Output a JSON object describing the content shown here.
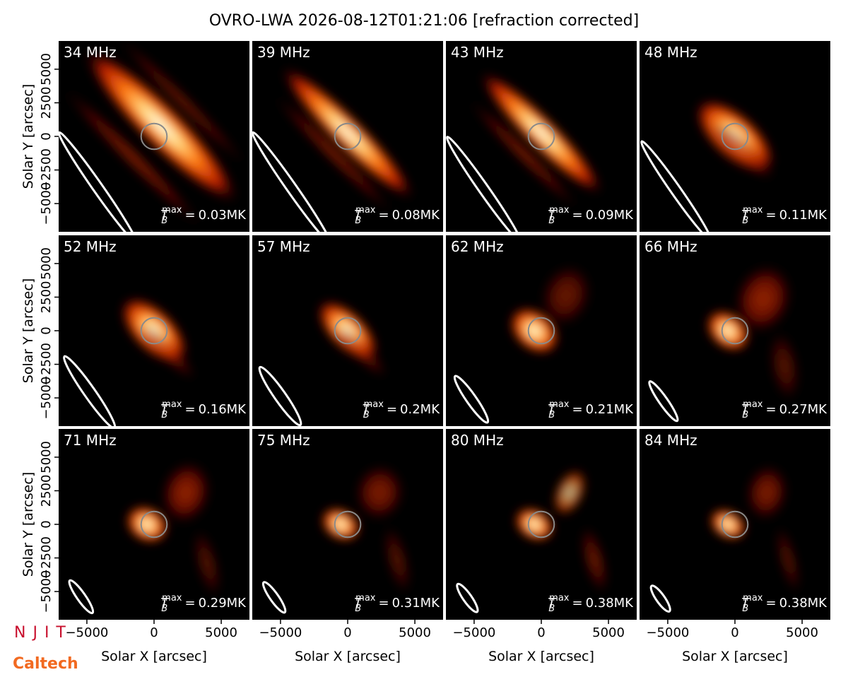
{
  "title": "OVRO-LWA 2026-08-12T01:21:06 [refraction corrected]",
  "xlabel": "Solar X [arcsec]",
  "ylabel": "Solar Y [arcsec]",
  "xlim": [
    -7100,
    7100
  ],
  "ylim": [
    -7100,
    7100
  ],
  "xticks": [
    {
      "value": -5000,
      "label": "−5000"
    },
    0,
    5000
  ],
  "yticks": [
    {
      "value": -5000,
      "label": "−5000"
    },
    {
      "value": -2500,
      "label": "−2500"
    },
    0,
    2500,
    5000
  ],
  "tb_label": {
    "symbol": "T",
    "sub": "B",
    "sup": "max",
    "eq": "="
  },
  "logos": [
    "NJIT",
    "Caltech"
  ],
  "chart_data": [
    {
      "type": "image",
      "title": "34 MHz",
      "values": [
        0.03
      ],
      "value_labels": [
        "0.03MK"
      ]
    },
    {
      "type": "image",
      "title": "39 MHz",
      "values": [
        0.08
      ],
      "value_labels": [
        "0.08MK"
      ]
    },
    {
      "type": "image",
      "title": "43 MHz",
      "values": [
        0.09
      ],
      "value_labels": [
        "0.09MK"
      ]
    },
    {
      "type": "image",
      "title": "48 MHz",
      "values": [
        0.11
      ],
      "value_labels": [
        "0.11MK"
      ]
    },
    {
      "type": "image",
      "title": "52 MHz",
      "values": [
        0.16
      ],
      "value_labels": [
        "0.16MK"
      ]
    },
    {
      "type": "image",
      "title": "57 MHz",
      "values": [
        0.2
      ],
      "value_labels": [
        "0.2MK"
      ]
    },
    {
      "type": "image",
      "title": "62 MHz",
      "values": [
        0.21
      ],
      "value_labels": [
        "0.21MK"
      ]
    },
    {
      "type": "image",
      "title": "66 MHz",
      "values": [
        0.27
      ],
      "value_labels": [
        "0.27MK"
      ]
    },
    {
      "type": "image",
      "title": "71 MHz",
      "values": [
        0.29
      ],
      "value_labels": [
        "0.29MK"
      ]
    },
    {
      "type": "image",
      "title": "75 MHz",
      "values": [
        0.31
      ],
      "value_labels": [
        "0.31MK"
      ]
    },
    {
      "type": "image",
      "title": "80 MHz",
      "values": [
        0.38
      ],
      "value_labels": [
        "0.38MK"
      ]
    },
    {
      "type": "image",
      "title": "84 MHz",
      "values": [
        0.38
      ],
      "value_labels": [
        "0.38MK"
      ]
    }
  ]
}
